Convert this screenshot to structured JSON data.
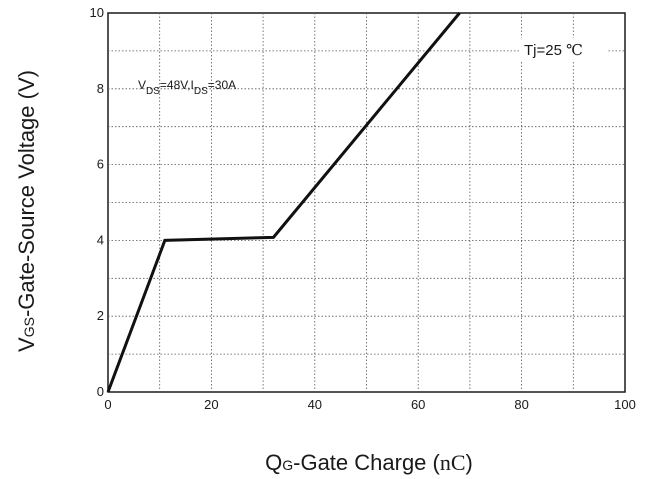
{
  "chart_data": {
    "type": "line",
    "xlabel_main": "Q",
    "xlabel_sub": "G",
    "xlabel_rest": "-Gate Charge (",
    "xlabel_unit": "nC",
    "xlabel_close": ")",
    "ylabel_main": "V",
    "ylabel_sub": "GS",
    "ylabel_rest": "-Gate-Source Voltage (V)",
    "xlim": [
      0,
      100
    ],
    "ylim": [
      0,
      10
    ],
    "x_ticks": [
      0,
      20,
      40,
      60,
      80,
      100
    ],
    "y_ticks": [
      0,
      2,
      4,
      6,
      8,
      10
    ],
    "grid": true,
    "series": [
      {
        "x": [
          0,
          11,
          32,
          68
        ],
        "y": [
          0,
          4.0,
          4.08,
          10
        ]
      }
    ],
    "annotations": {
      "condition": {
        "v": "V",
        "vds_sub": "DS",
        "vds_val": "=48V,I",
        "ids_sub": "DS",
        "ids_val": "=30A"
      },
      "temperature": {
        "label": "Tj=25 ",
        "unit": "℃"
      }
    }
  }
}
